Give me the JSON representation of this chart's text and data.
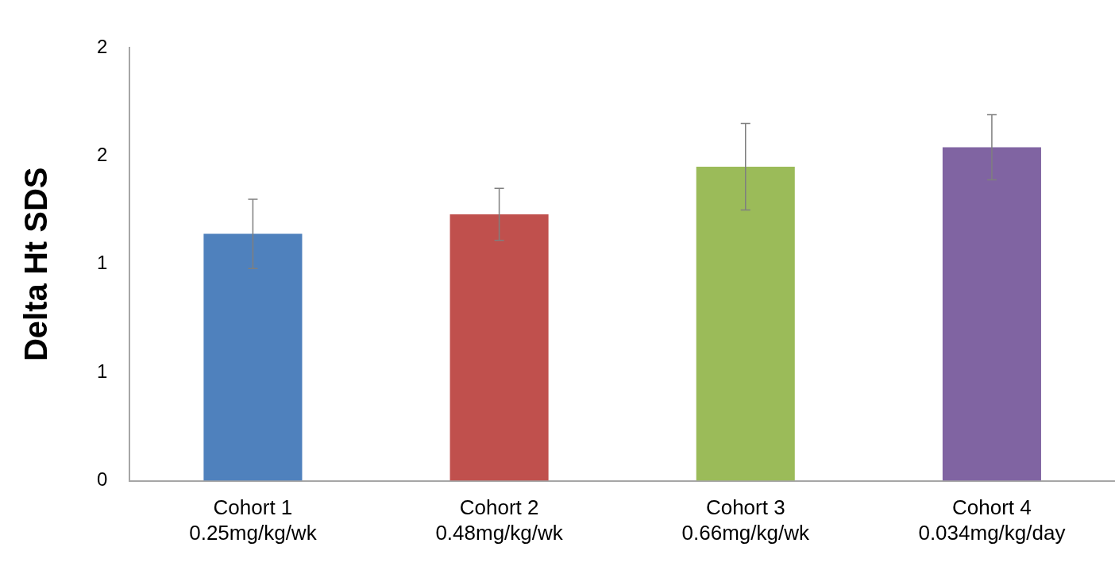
{
  "chart_data": {
    "type": "bar",
    "ylabel": "Delta Ht SDS",
    "categories": [
      "Cohort 1\n0.25mg/kg/wk",
      "Cohort 2\n0.48mg/kg/wk",
      "Cohort 3\n0.66mg/kg/wk",
      "Cohort 4\n0.034mg/kg/day"
    ],
    "values": [
      1.14,
      1.23,
      1.45,
      1.54
    ],
    "colors": [
      "#4f81bd",
      "#c0504d",
      "#9bbb59",
      "#8064a2"
    ],
    "errors": [
      0.16,
      0.12,
      0.2,
      0.15
    ],
    "ylim": [
      0,
      2
    ],
    "yticks": [
      0,
      {
        "value": 0.5,
        "label": "1"
      },
      {
        "value": 1,
        "label": "1"
      },
      {
        "value": 1.5,
        "label": "2"
      },
      {
        "value": 2,
        "label": "2"
      }
    ],
    "grid": false,
    "legend": false
  }
}
